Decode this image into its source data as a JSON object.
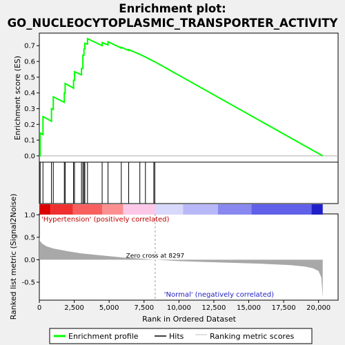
{
  "chart_data": {
    "type": "line",
    "title_line1": "Enrichment plot:",
    "title_line2": "GO_NUCLEOCYTOPLASMIC_TRANSPORTER_ACTIVITY",
    "es_panel": {
      "ylabel": "Enrichment score (ES)",
      "ylim": [
        -0.04,
        0.78
      ],
      "yticks": [
        0.0,
        0.1,
        0.2,
        0.3,
        0.4,
        0.5,
        0.6,
        0.7
      ],
      "ytick_labels": [
        "0.0",
        "0.1",
        "0.2",
        "0.3",
        "0.4",
        "0.5",
        "0.6",
        "0.7"
      ],
      "series_name": "Enrichment profile",
      "color": "#00ff00",
      "points": [
        [
          0,
          0.0
        ],
        [
          60,
          0.0
        ],
        [
          60,
          0.145
        ],
        [
          260,
          0.135
        ],
        [
          260,
          0.25
        ],
        [
          870,
          0.22
        ],
        [
          870,
          0.3
        ],
        [
          1000,
          0.295
        ],
        [
          1000,
          0.375
        ],
        [
          1790,
          0.34
        ],
        [
          1790,
          0.4
        ],
        [
          1850,
          0.4
        ],
        [
          1850,
          0.46
        ],
        [
          2450,
          0.43
        ],
        [
          2450,
          0.48
        ],
        [
          2520,
          0.48
        ],
        [
          2520,
          0.535
        ],
        [
          3020,
          0.515
        ],
        [
          3020,
          0.555
        ],
        [
          3120,
          0.555
        ],
        [
          3120,
          0.64
        ],
        [
          3200,
          0.64
        ],
        [
          3200,
          0.68
        ],
        [
          3260,
          0.68
        ],
        [
          3260,
          0.715
        ],
        [
          3450,
          0.71
        ],
        [
          3450,
          0.745
        ],
        [
          4500,
          0.7
        ],
        [
          4500,
          0.72
        ],
        [
          4920,
          0.705
        ],
        [
          4920,
          0.725
        ],
        [
          5870,
          0.685
        ],
        [
          5870,
          0.69
        ],
        [
          6400,
          0.67
        ],
        [
          6400,
          0.675
        ],
        [
          7200,
          0.645
        ],
        [
          7600,
          0.628
        ],
        [
          8200,
          0.6
        ],
        [
          8270,
          0.598
        ],
        [
          20300,
          0.0
        ]
      ]
    },
    "hits_panel": {
      "hit_positions": [
        60,
        260,
        870,
        1000,
        1790,
        1850,
        2450,
        2520,
        3020,
        3120,
        3200,
        3260,
        3450,
        4500,
        4920,
        5870,
        6400,
        7200,
        7600,
        8200,
        8270
      ],
      "heatmap_segments": [
        {
          "x0": 0,
          "x1": 800,
          "color": "#dd0000"
        },
        {
          "x0": 800,
          "x1": 2400,
          "color": "#f03030"
        },
        {
          "x0": 2400,
          "x1": 4500,
          "color": "#f86060"
        },
        {
          "x0": 4500,
          "x1": 6000,
          "color": "#fc9090"
        },
        {
          "x0": 6000,
          "x1": 8300,
          "color": "#fcc8e8"
        },
        {
          "x0": 8300,
          "x1": 10300,
          "color": "#d8d8fa"
        },
        {
          "x0": 10300,
          "x1": 12800,
          "color": "#b8b8f8"
        },
        {
          "x0": 12800,
          "x1": 15200,
          "color": "#8888f0"
        },
        {
          "x0": 15200,
          "x1": 19500,
          "color": "#6060e8"
        },
        {
          "x0": 19500,
          "x1": 20300,
          "color": "#2020c8"
        }
      ]
    },
    "metric_panel": {
      "ylabel": "Ranked list metric (Signal2Noise)",
      "xlabel": "Rank in Ordered Dataset",
      "ylim": [
        -0.9,
        1.02
      ],
      "yticks": [
        -0.5,
        0.0,
        0.5,
        1.0
      ],
      "ytick_labels": [
        "-0.5",
        "0.0",
        "0.5",
        "1.0"
      ],
      "xlim": [
        0,
        21400
      ],
      "xticks": [
        0,
        2500,
        5000,
        7500,
        10000,
        12500,
        15000,
        17500,
        20000
      ],
      "xtick_labels": [
        "0",
        "2,500",
        "5,000",
        "7,500",
        "10,000",
        "12,500",
        "15,000",
        "17,500",
        "20,000"
      ],
      "series_name": "Ranking metric scores",
      "color": "#a0a0a0",
      "profile": [
        [
          0,
          0.5
        ],
        [
          50,
          0.42
        ],
        [
          200,
          0.36
        ],
        [
          500,
          0.3
        ],
        [
          1000,
          0.25
        ],
        [
          2000,
          0.19
        ],
        [
          3000,
          0.14
        ],
        [
          4000,
          0.11
        ],
        [
          5000,
          0.08
        ],
        [
          6000,
          0.05
        ],
        [
          7000,
          0.03
        ],
        [
          8297,
          0.0
        ],
        [
          10000,
          -0.03
        ],
        [
          12000,
          -0.05
        ],
        [
          14000,
          -0.07
        ],
        [
          16000,
          -0.09
        ],
        [
          18000,
          -0.12
        ],
        [
          19000,
          -0.15
        ],
        [
          19600,
          -0.19
        ],
        [
          20000,
          -0.25
        ],
        [
          20200,
          -0.4
        ],
        [
          20300,
          -0.85
        ]
      ],
      "zero_cross_rank": 8297,
      "zero_cross_label": "Zero cross at 8297",
      "positive_label": "'Hypertension' (positively correlated)",
      "negative_label": "'Normal' (negatively correlated)"
    },
    "n_ranks": 20300,
    "legend": {
      "placement": "bottom",
      "entries": [
        {
          "label": "Enrichment profile",
          "color": "#00ff00",
          "kind": "line"
        },
        {
          "label": "Hits",
          "color": "#000000",
          "kind": "line"
        },
        {
          "label": "Ranking metric scores",
          "color": "#c0c0c0",
          "kind": "line"
        }
      ]
    }
  }
}
